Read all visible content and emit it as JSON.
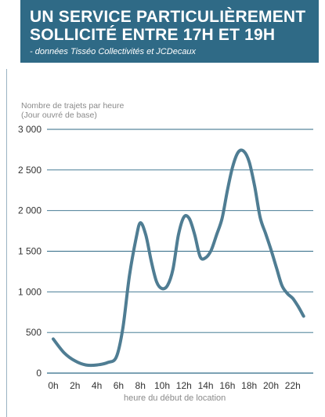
{
  "header": {
    "title_line1": "UN SERVICE PARTICULIÈREMENT",
    "title_line2": "SOLLICITÉ ENTRE 17H ET 19H",
    "subtitle": "- données Tisséo Collectivités et JCDecaux"
  },
  "colors": {
    "header_bg": "#2f6a86",
    "line": "#4f7d93",
    "grid": "#2f6a86"
  },
  "chart_data": {
    "type": "line",
    "ylabel_line1": "Nombre de trajets par heure",
    "ylabel_line2": "(Jour ouvré de base)",
    "xlabel": "heure du début de location",
    "ylim": [
      0,
      3000
    ],
    "y_ticks": [
      0,
      500,
      1000,
      1500,
      2000,
      2500,
      3000
    ],
    "y_tick_labels": [
      "0",
      "500",
      "1 000",
      "1 500",
      "2 000",
      "2 500",
      "3 000"
    ],
    "x_ticks": [
      0,
      2,
      4,
      6,
      8,
      10,
      12,
      14,
      16,
      18,
      20,
      22
    ],
    "x_tick_labels": [
      "0h",
      "2h",
      "4h",
      "6h",
      "8h",
      "10h",
      "12h",
      "14h",
      "16h",
      "18h",
      "20h",
      "22h"
    ],
    "grid": "horizontal",
    "series": [
      {
        "x": [
          0,
          1,
          2,
          3,
          4,
          5,
          5.8,
          6.4,
          7,
          7.6,
          8,
          8.5,
          9,
          9.5,
          10,
          10.5,
          11,
          11.5,
          12,
          12.5,
          13,
          13.5,
          14,
          14.5,
          15,
          15.5,
          16,
          16.5,
          17,
          17.5,
          18,
          18.5,
          19,
          19.5,
          20,
          20.5,
          21,
          21.5,
          22,
          22.5,
          23
        ],
        "values": [
          420,
          250,
          150,
          100,
          100,
          130,
          200,
          560,
          1200,
          1650,
          1850,
          1700,
          1380,
          1120,
          1040,
          1080,
          1280,
          1700,
          1920,
          1900,
          1700,
          1430,
          1420,
          1510,
          1700,
          1900,
          2250,
          2550,
          2720,
          2730,
          2600,
          2300,
          1920,
          1720,
          1520,
          1300,
          1080,
          980,
          920,
          820,
          700
        ]
      }
    ]
  }
}
